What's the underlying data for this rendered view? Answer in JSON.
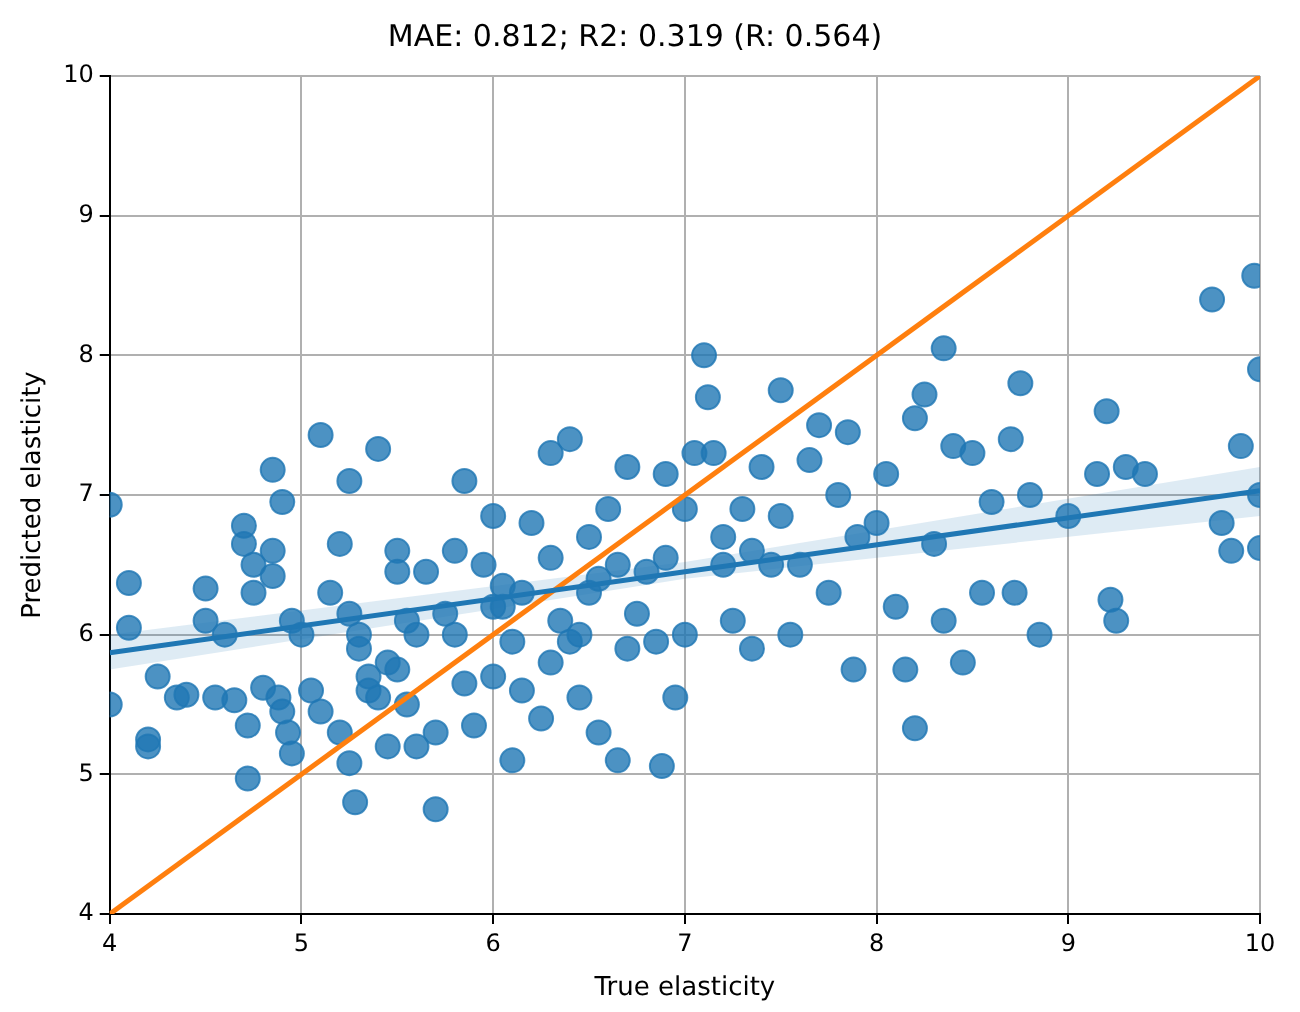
{
  "chart_data": {
    "type": "scatter",
    "title": "MAE: 0.812; R2: 0.319 (R: 0.564)",
    "xlabel": "True elasticity",
    "ylabel": "Predicted elasticity",
    "xlim": [
      4,
      10
    ],
    "ylim": [
      4,
      10
    ],
    "xticks": [
      4,
      5,
      6,
      7,
      8,
      9,
      10
    ],
    "yticks": [
      4,
      5,
      6,
      7,
      8,
      9,
      10
    ],
    "grid": true,
    "legend": false,
    "series": [
      {
        "marker": "circle",
        "color": "#1f77b4",
        "x": [
          4.0,
          4.0,
          4.1,
          4.1,
          4.2,
          4.2,
          4.25,
          4.35,
          4.4,
          4.5,
          4.5,
          4.55,
          4.6,
          4.65,
          4.7,
          4.7,
          4.72,
          4.72,
          4.75,
          4.75,
          4.8,
          4.85,
          4.85,
          4.85,
          4.88,
          4.9,
          4.9,
          4.93,
          4.95,
          4.95,
          5.0,
          5.05,
          5.1,
          5.1,
          5.2,
          5.2,
          5.25,
          5.25,
          5.25,
          5.28,
          5.3,
          5.35,
          5.4,
          5.45,
          5.5,
          5.5,
          5.55,
          5.6,
          5.6,
          5.65,
          5.7,
          5.7,
          5.75,
          5.8,
          5.85,
          5.9,
          5.95,
          6.0,
          6.0,
          6.0,
          6.05,
          6.1,
          6.15,
          6.15,
          6.2,
          6.25,
          6.3,
          6.3,
          6.35,
          6.4,
          6.4,
          6.45,
          6.5,
          6.5,
          6.55,
          6.6,
          6.65,
          6.65,
          6.7,
          6.75,
          6.8,
          6.85,
          6.88,
          6.9,
          6.95,
          7.0,
          7.0,
          7.05,
          7.1,
          7.12,
          7.15,
          7.2,
          7.25,
          7.3,
          7.35,
          7.4,
          7.45,
          7.5,
          7.5,
          7.55,
          7.6,
          7.65,
          7.7,
          7.75,
          7.8,
          7.85,
          7.88,
          7.9,
          8.0,
          8.05,
          8.1,
          8.15,
          8.2,
          8.2,
          8.25,
          8.3,
          8.35,
          8.35,
          8.4,
          8.45,
          8.5,
          8.55,
          8.6,
          8.7,
          8.72,
          8.75,
          8.8,
          8.85,
          9.0,
          9.15,
          9.2,
          9.22,
          9.25,
          9.3,
          9.4,
          9.75,
          9.8,
          9.85,
          9.9,
          9.97,
          10.0,
          10.0,
          10.0,
          5.5,
          5.8,
          6.05,
          6.3,
          6.45,
          6.55,
          6.1,
          5.85,
          6.7,
          5.35,
          5.3,
          5.45,
          5.4,
          5.55,
          5.15,
          6.9,
          7.2,
          7.35
        ],
        "values": [
          6.93,
          5.5,
          6.37,
          6.05,
          5.25,
          5.2,
          5.7,
          5.55,
          5.57,
          6.33,
          6.1,
          5.55,
          6.0,
          5.53,
          6.65,
          6.78,
          5.35,
          4.97,
          6.5,
          6.3,
          5.62,
          7.18,
          6.6,
          6.42,
          5.55,
          6.95,
          5.45,
          5.3,
          6.1,
          5.15,
          6.0,
          5.6,
          5.45,
          7.43,
          5.3,
          6.65,
          6.15,
          5.08,
          7.1,
          4.8,
          6.0,
          5.6,
          7.33,
          5.2,
          6.6,
          5.75,
          5.5,
          6.0,
          5.2,
          6.45,
          4.75,
          5.3,
          6.15,
          6.0,
          7.1,
          5.35,
          6.5,
          6.85,
          5.7,
          6.2,
          6.35,
          5.95,
          6.3,
          5.6,
          6.8,
          5.4,
          7.3,
          6.55,
          6.1,
          7.4,
          5.95,
          5.55,
          6.7,
          6.3,
          5.3,
          6.9,
          5.1,
          6.5,
          7.2,
          6.15,
          6.45,
          5.95,
          5.06,
          7.15,
          5.55,
          6.9,
          6.0,
          7.3,
          8.0,
          7.7,
          7.3,
          6.5,
          6.1,
          6.9,
          5.9,
          7.2,
          6.5,
          7.75,
          6.85,
          6.0,
          6.5,
          7.25,
          7.5,
          6.3,
          7.0,
          7.45,
          5.75,
          6.7,
          6.8,
          7.15,
          6.2,
          5.75,
          7.55,
          5.33,
          7.72,
          6.65,
          8.05,
          6.1,
          7.35,
          5.8,
          7.3,
          6.3,
          6.95,
          7.4,
          6.3,
          7.8,
          7.0,
          6.0,
          6.85,
          7.15,
          7.6,
          6.25,
          6.1,
          7.2,
          7.15,
          8.4,
          6.8,
          6.6,
          7.35,
          8.57,
          7.9,
          6.62,
          7.0,
          6.45,
          6.6,
          6.2,
          5.8,
          6.0,
          6.4,
          5.1,
          5.65,
          5.9,
          5.7,
          5.9,
          5.8,
          5.55,
          6.1,
          6.3,
          6.55,
          6.7,
          6.6
        ]
      },
      {
        "type": "line",
        "marker": "none",
        "color": "#1f77b4",
        "x": [
          4,
          7,
          10
        ],
        "values": [
          5.87,
          6.45,
          7.03
        ],
        "lower": [
          5.75,
          6.4,
          6.85
        ],
        "upper": [
          6.0,
          6.52,
          7.2
        ]
      },
      {
        "type": "line",
        "marker": "none",
        "color": "#ff7f0e",
        "x": [
          4,
          10
        ],
        "values": [
          4,
          10
        ]
      }
    ]
  }
}
